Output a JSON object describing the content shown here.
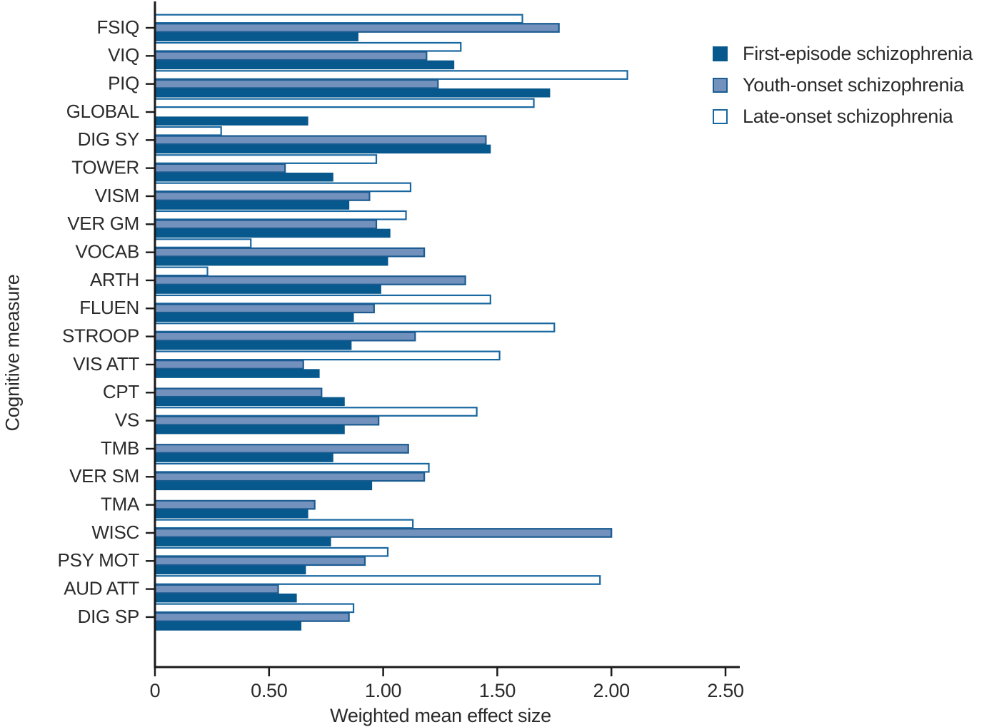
{
  "figure": {
    "xlabel": "Weighted mean effect size",
    "ylabel": "Cognitive measure"
  },
  "chart_data": {
    "type": "bar",
    "orientation": "horizontal",
    "title": "",
    "xlabel": "Weighted mean effect size",
    "ylabel": "Cognitive measure",
    "xlim": [
      0,
      2.5
    ],
    "xtick_values": [
      0,
      0.5,
      1.0,
      1.5,
      2.0,
      2.5
    ],
    "xtick_labels": [
      "0",
      "0.50",
      "1.00",
      "1.50",
      "2.00",
      "2.50"
    ],
    "grid": false,
    "legend_position": "upper right outside",
    "bar_order_top_to_bottom": [
      "Late-onset schizophrenia",
      "Youth-onset schizophrenia",
      "First-episode schizophrenia"
    ],
    "axis_color": "#1a1a1a",
    "categories": [
      "FSIQ",
      "VIQ",
      "PIQ",
      "GLOBAL",
      "DIG SY",
      "TOWER",
      "VISM",
      "VER GM",
      "VOCAB",
      "ARTH",
      "FLUEN",
      "STROOP",
      "VIS ATT",
      "CPT",
      "VS",
      "TMB",
      "VER SM",
      "TMA",
      "WISC",
      "PSY MOT",
      "AUD ATT",
      "DIG SP"
    ],
    "series": [
      {
        "name": "First-episode schizophrenia",
        "fill": "#07588c",
        "stroke": "#07588c",
        "values": [
          0.89,
          1.31,
          1.73,
          0.67,
          1.47,
          0.78,
          0.85,
          1.03,
          1.02,
          0.99,
          0.87,
          0.86,
          0.72,
          0.83,
          0.83,
          0.78,
          0.95,
          0.67,
          0.77,
          0.66,
          0.62,
          0.64
        ]
      },
      {
        "name": "Youth-onset schizophrenia",
        "fill": "#7291bd",
        "stroke": "#1c5c91",
        "values": [
          1.77,
          1.19,
          1.24,
          null,
          1.45,
          0.57,
          0.94,
          0.97,
          1.18,
          1.36,
          0.96,
          1.14,
          0.65,
          0.73,
          0.98,
          1.11,
          1.18,
          0.7,
          2.0,
          0.92,
          0.54,
          0.85
        ]
      },
      {
        "name": "Late-onset schizophrenia",
        "fill": "#ffffff",
        "stroke": "#1767a0",
        "values": [
          1.61,
          1.34,
          2.07,
          1.66,
          0.29,
          0.97,
          1.12,
          1.1,
          0.42,
          0.23,
          1.47,
          1.75,
          1.51,
          null,
          1.41,
          null,
          1.2,
          null,
          1.13,
          1.02,
          1.95,
          0.87
        ]
      }
    ]
  }
}
